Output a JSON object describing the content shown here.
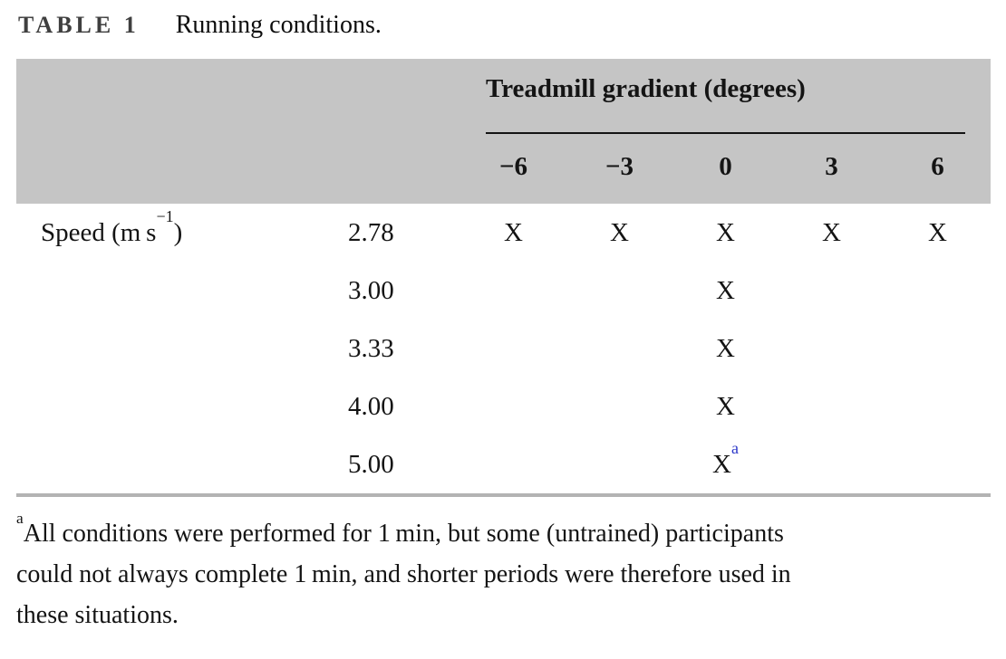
{
  "title": {
    "label": "TABLE 1",
    "caption": "Running conditions."
  },
  "table": {
    "span_header": "Treadmill gradient (degrees)",
    "gradient_columns": [
      "−6",
      "−3",
      "0",
      "3",
      "6"
    ],
    "row_group_label": {
      "prefix": "Speed (m s",
      "sup": "−1",
      "suffix": ")"
    },
    "rows": [
      {
        "speed": "2.78",
        "marks": [
          "X",
          "X",
          "X",
          "X",
          "X"
        ]
      },
      {
        "speed": "3.00",
        "marks": [
          "",
          "",
          "X",
          "",
          ""
        ]
      },
      {
        "speed": "3.33",
        "marks": [
          "",
          "",
          "X",
          "",
          ""
        ]
      },
      {
        "speed": "4.00",
        "marks": [
          "",
          "",
          "X",
          "",
          ""
        ]
      },
      {
        "speed": "5.00",
        "marks": [
          "",
          "",
          "X",
          "",
          ""
        ],
        "sup": "a"
      }
    ]
  },
  "footnote": {
    "marker": "a",
    "lines": [
      "All conditions were performed for 1 min, but some (untrained) participants",
      "could not always complete 1 min, and shorter periods were therefore used in",
      "these situations."
    ]
  },
  "colors": {
    "header_bg": "#c5c5c5",
    "header_rule": "#141414",
    "bottom_rule": "#b3b3b3",
    "mark_sup_blue": "#2a35c8",
    "title_label_gray": "#3f3f3f"
  }
}
